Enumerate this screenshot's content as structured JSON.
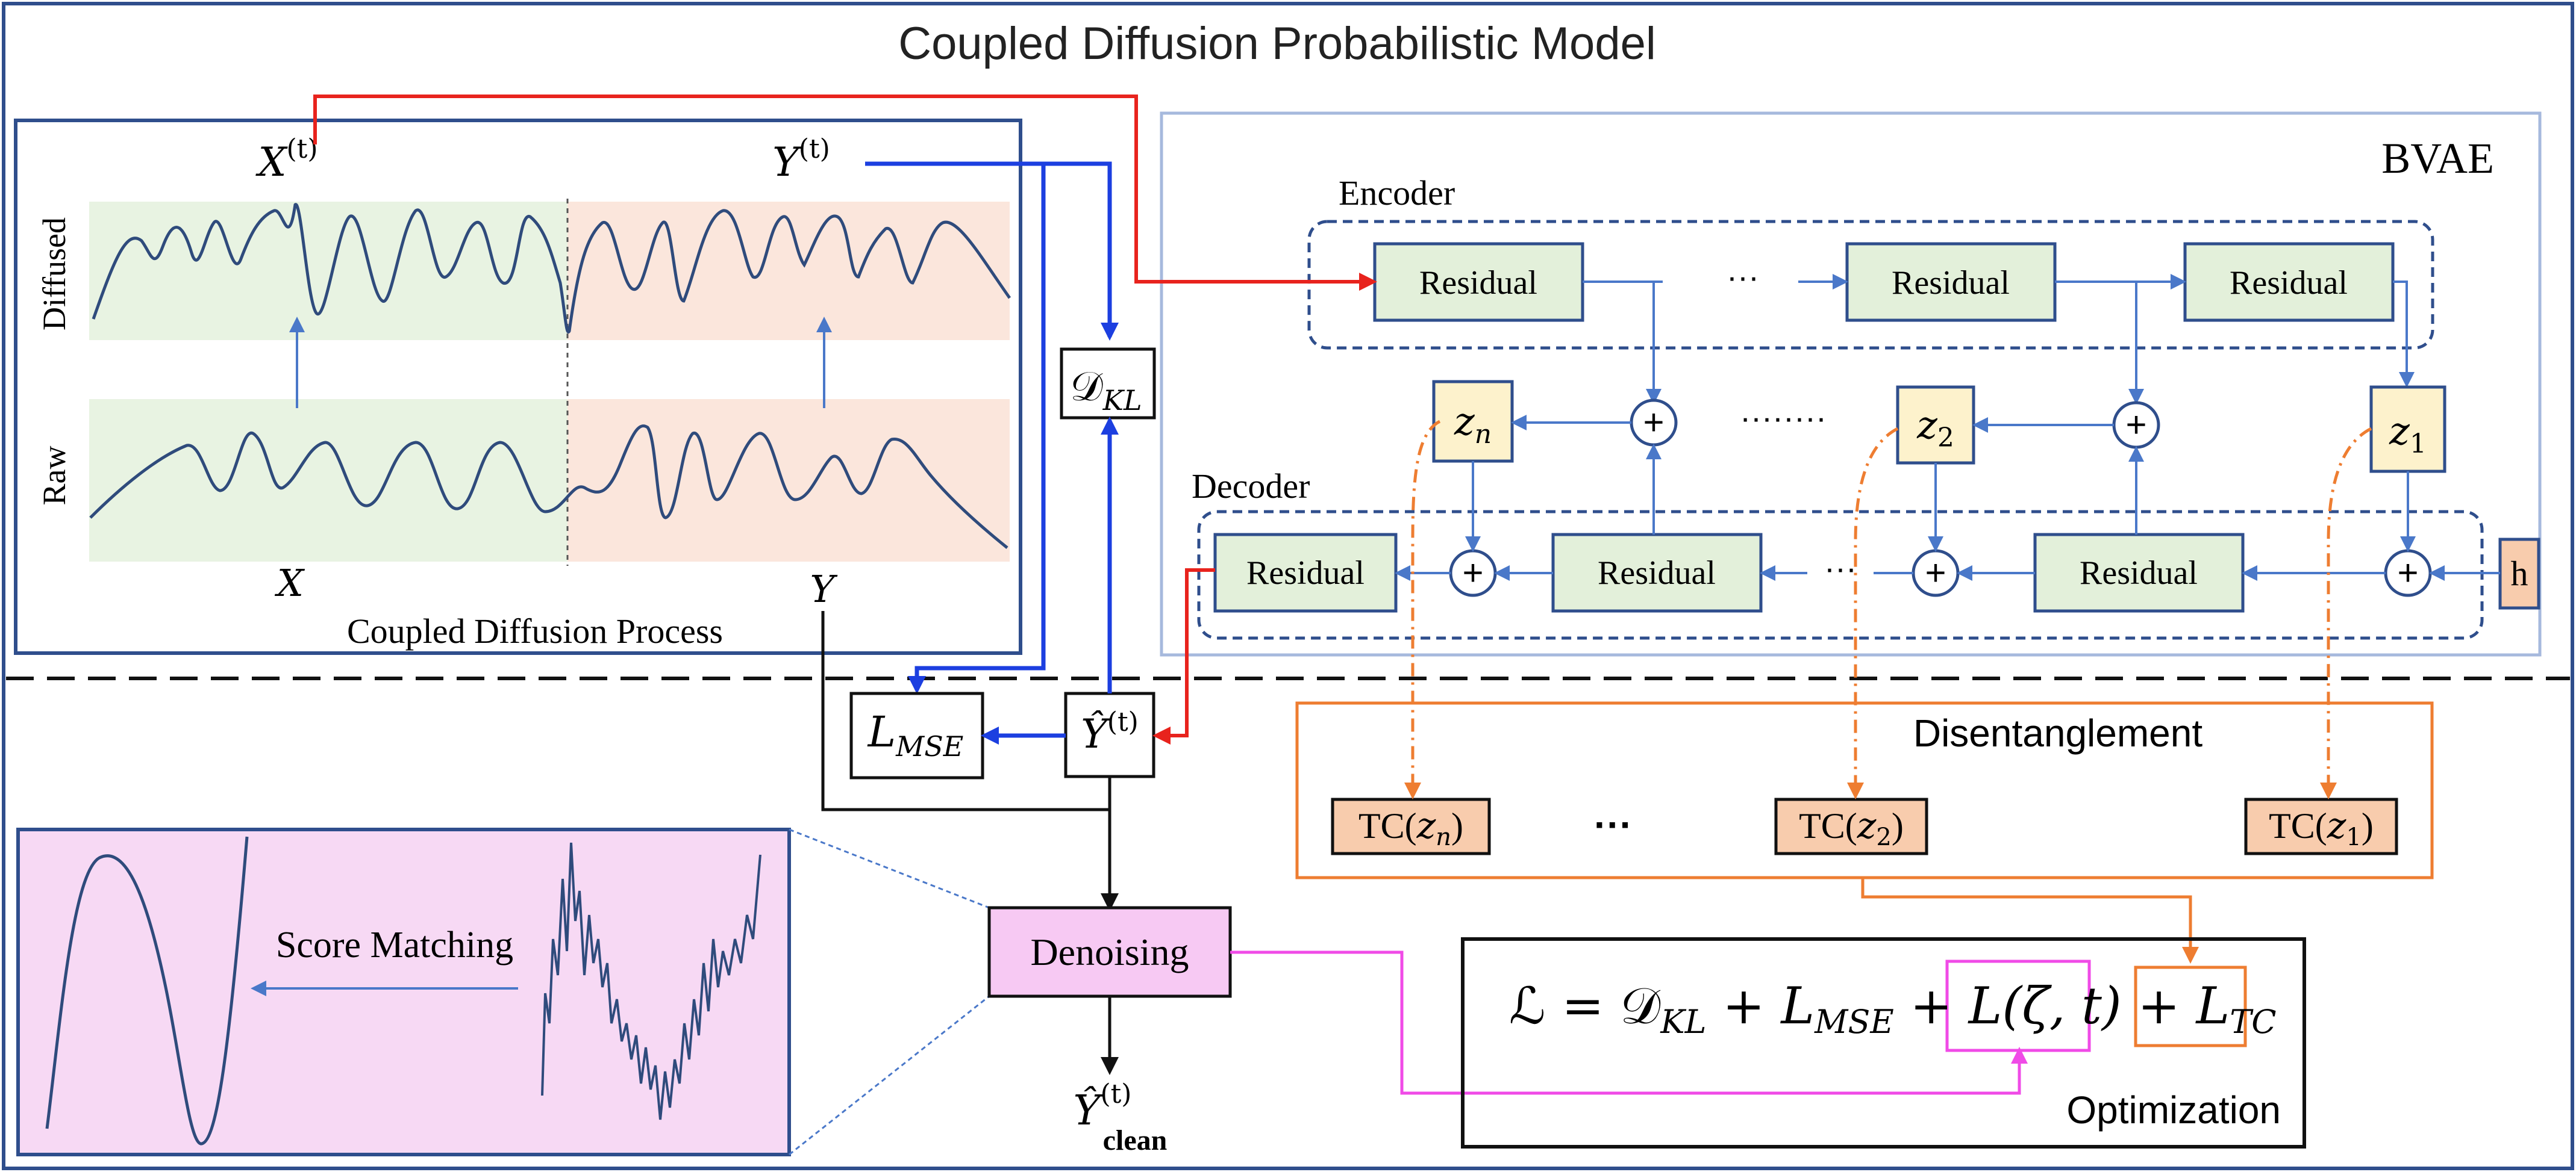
{
  "title": "Coupled Diffusion Probabilistic Model",
  "diffusion_panel": {
    "label_x_t": "X",
    "label_y_t": "Y",
    "superscript": "(t)",
    "row_diffused": "Diffused",
    "row_raw": "Raw",
    "label_x": "X",
    "label_y": "Y",
    "caption": "Coupled Diffusion Process"
  },
  "d_kl": {
    "main": "𝒟",
    "sub": "KL"
  },
  "l_mse": {
    "main": "L",
    "sub": "MSE"
  },
  "y_hat": {
    "main": "Ŷ",
    "sup": "(t)"
  },
  "bvae": {
    "title": "BVAE",
    "encoder_label": "Encoder",
    "decoder_label": "Decoder",
    "residual": "Residual",
    "ellipsis_short": "···",
    "ellipsis_long": "········",
    "plus": "+",
    "latents": [
      {
        "main": "z",
        "sub": "n"
      },
      {
        "main": "z",
        "sub": "2"
      },
      {
        "main": "z",
        "sub": "1"
      }
    ],
    "h": "h"
  },
  "disentanglement": {
    "title": "Disentanglement",
    "tc_terms": [
      {
        "prefix": "TC(",
        "var": "z",
        "sub": "n",
        "suffix": ")"
      },
      {
        "prefix": "TC(",
        "var": "z",
        "sub": "2",
        "suffix": ")"
      },
      {
        "prefix": "TC(",
        "var": "z",
        "sub": "1",
        "suffix": ")"
      }
    ],
    "ellipsis": "···"
  },
  "denoising": {
    "label": "Denoising",
    "score_matching": "Score Matching",
    "output_main": "Ŷ",
    "output_sup": "(t)",
    "output_sub": "clean"
  },
  "optimization": {
    "label": "Optimization",
    "eq_lhs": "ℒ",
    "eq_eq": " = ",
    "eq_d": "𝒟",
    "eq_d_sub": "KL",
    "eq_plus1": " + ",
    "eq_l": "L",
    "eq_l_sub": "MSE",
    "eq_plus2": " + ",
    "eq_score": "L(ζ, t)",
    "eq_plus3": " + ",
    "eq_tc": "L",
    "eq_tc_sub": "TC"
  },
  "colors": {
    "frame": "#2f4e8c",
    "arrow_red": "#e8231d",
    "arrow_blue": "#1c3fe0",
    "arrow_thin": "#4a78c9",
    "orange": "#ee7d31",
    "magenta": "#f04be7",
    "green_fill": "#e3f0da",
    "latent_fill": "#fdf2cc",
    "tc_fill": "#f8ccad",
    "denoise_fill": "#f7c9f3",
    "score_fill": "#f7d9f4",
    "pane_green": "#e8f3e2",
    "pane_pink": "#fbe6dc",
    "curve": "#2f4b7c"
  }
}
